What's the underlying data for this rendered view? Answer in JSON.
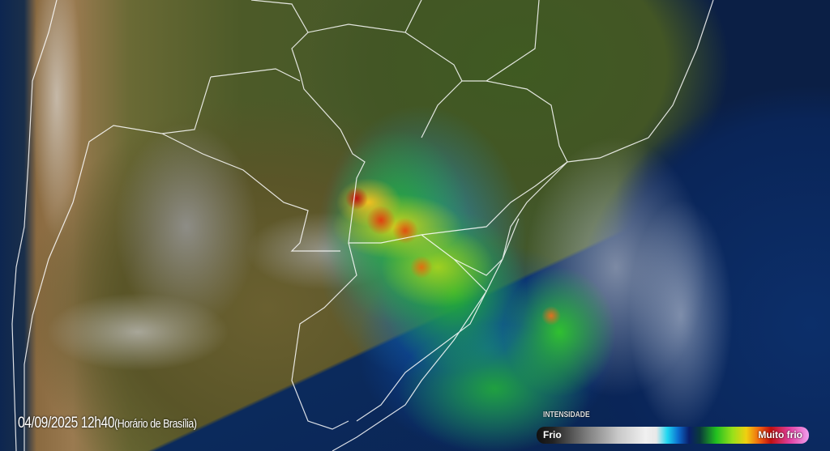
{
  "timestamp": {
    "datetime": "04/09/2025 12h40",
    "timezone": "(Horário de Brasília)"
  },
  "legend": {
    "title": "INTENSIDADE",
    "min_label": "Frio",
    "max_label": "Muito frio",
    "colors": [
      "#111111",
      "#7a7a7a",
      "#f0f0f0",
      "#1fd7f0",
      "#0a1e6a",
      "#22c020",
      "#f0d010",
      "#c01010",
      "#f0a0f0"
    ]
  },
  "map": {
    "ocean_color": "#0b2a5c",
    "land_color": "#4a5a2a"
  }
}
